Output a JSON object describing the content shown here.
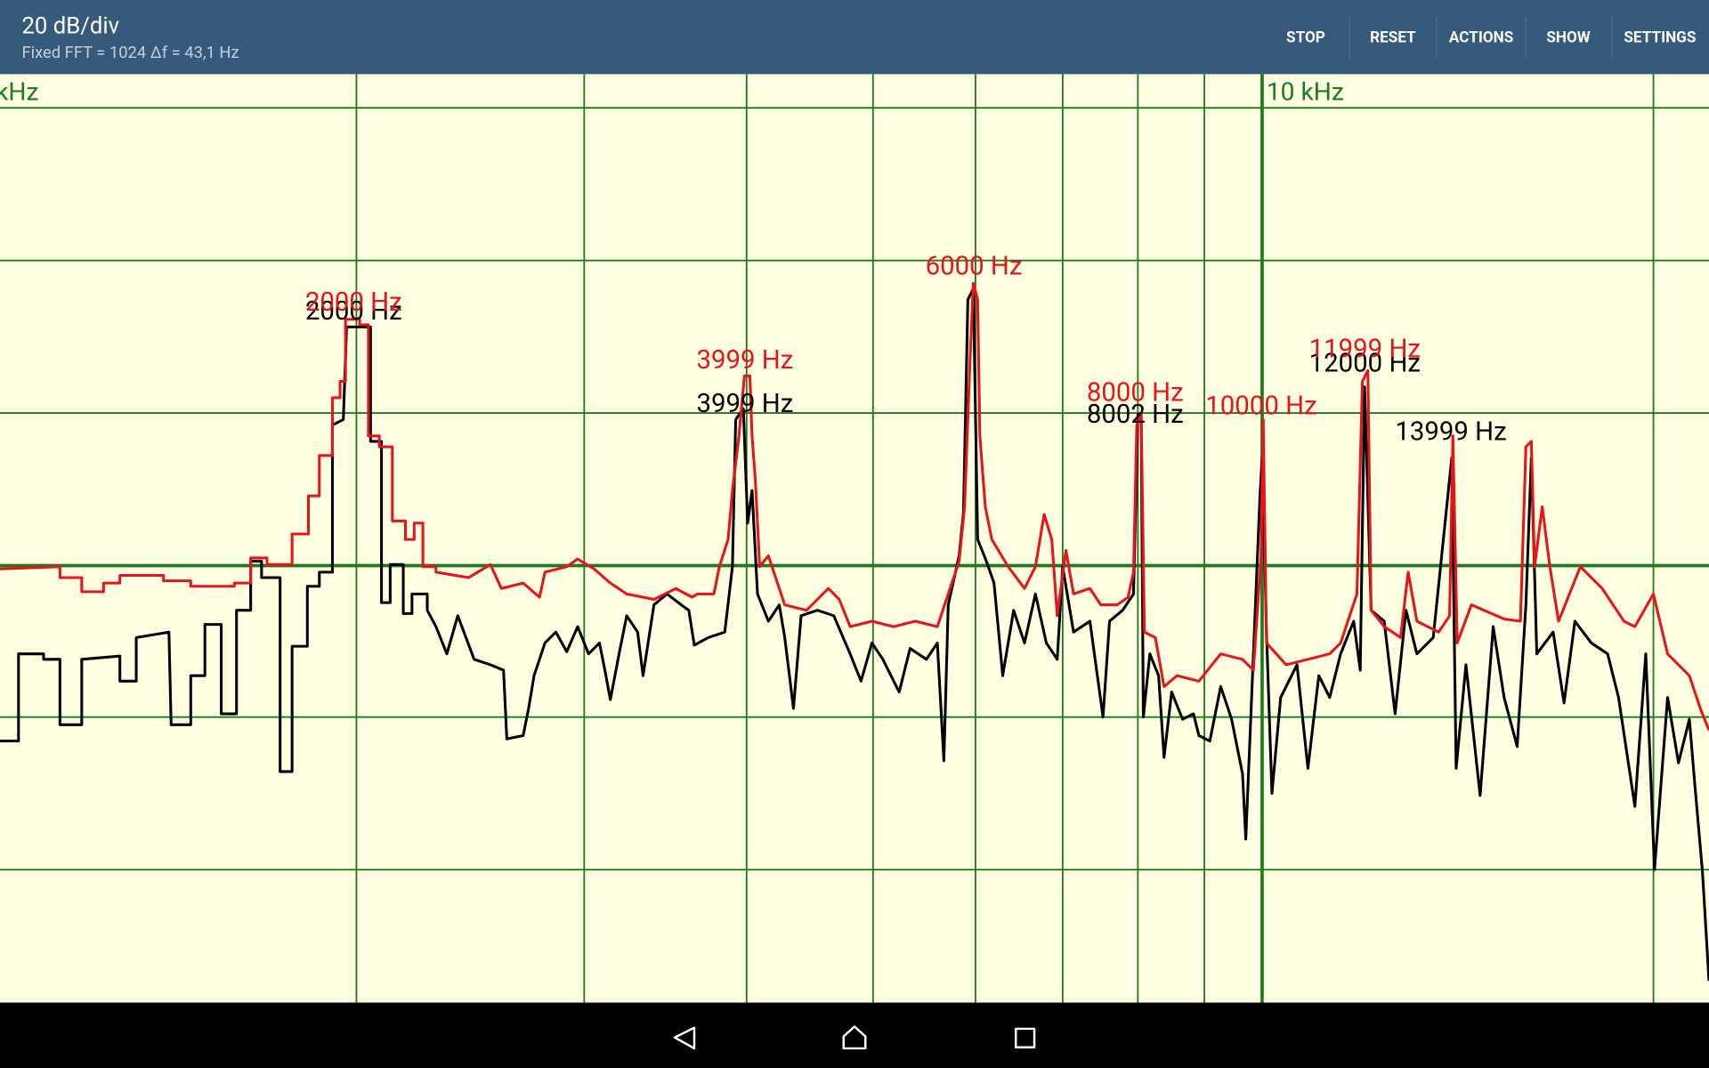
{
  "header": {
    "title": "20 dB/div",
    "subtitle": "Fixed FFT = 1024 Δf = 43,1 Hz"
  },
  "toolbar": {
    "buttons": [
      "STOP",
      "RESET",
      "ACTIONS",
      "SHOW",
      "SETTINGS"
    ]
  },
  "plot": {
    "axis_labels": [
      "kHz",
      "10 kHz"
    ],
    "peaks": {
      "red": [
        "2000 Hz",
        "3999 Hz",
        "6000 Hz",
        "8000 Hz",
        "10000 Hz",
        "11999 Hz"
      ],
      "black": [
        "2000 Hz",
        "3999 Hz",
        "8002 Hz",
        "12000 Hz",
        "13999 Hz"
      ]
    }
  }
}
